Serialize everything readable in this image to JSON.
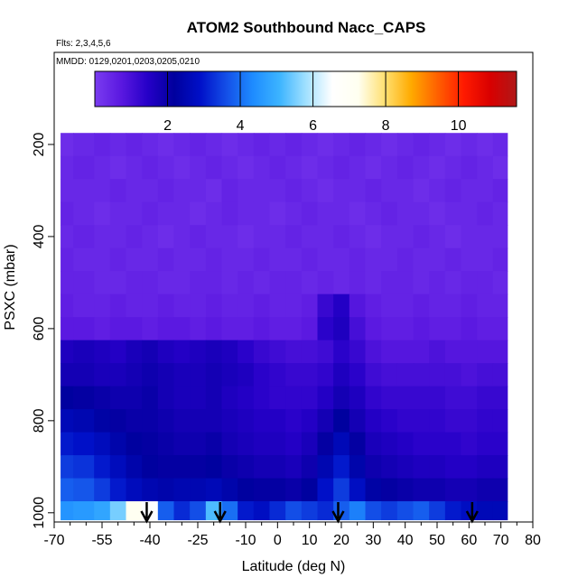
{
  "chart_data": {
    "type": "heatmap",
    "title": "ATOM2 Southbound Nacc_CAPS",
    "flights_note": "Flts: 2,3,4,5,6",
    "dates_note": "MMDD: 0129,0201,0203,0205,0210",
    "xlabel": "Latitude (deg N)",
    "ylabel": "PSXC (mbar)",
    "xlim": [
      -70,
      80
    ],
    "ylim": [
      1020,
      0
    ],
    "x_ticks": [
      -70,
      -55,
      -40,
      -25,
      -10,
      0,
      10,
      20,
      30,
      40,
      50,
      60,
      70,
      80
    ],
    "x_tick_labels": [
      "-70",
      "-55",
      "-40",
      "-25",
      "-10",
      "0",
      "10",
      "20",
      "30",
      "40",
      "50",
      "60",
      "70",
      "80"
    ],
    "x_minor_ticks": [
      -65,
      -60,
      -50,
      -45,
      -35,
      -30,
      -20,
      -15,
      -5,
      5,
      15,
      25,
      35,
      45,
      55,
      65,
      75
    ],
    "y_ticks": [
      200,
      400,
      600,
      800,
      1000
    ],
    "y_tick_labels": [
      "200",
      "400",
      "600",
      "800",
      "1000"
    ],
    "colorbar": {
      "min": 0,
      "max": 11.6,
      "ticks": [
        2,
        4,
        6,
        8,
        10
      ],
      "tick_labels": [
        "2",
        "4",
        "6",
        "8",
        "10"
      ],
      "colors": [
        "#7a3cf0",
        "#5a18e0",
        "#2600c8",
        "#00009e",
        "#0010c8",
        "#1450e8",
        "#1e8cff",
        "#3cb4ff",
        "#a0e0ff",
        "#ffffff",
        "#fffff0",
        "#ffe070",
        "#ffaa00",
        "#ff6000",
        "#ff1a00",
        "#d80000",
        "#b01818"
      ]
    },
    "pressure_levels": [
      200,
      250,
      300,
      350,
      400,
      450,
      500,
      550,
      600,
      650,
      700,
      750,
      800,
      850,
      900,
      950,
      1000
    ],
    "latitudes": [
      -68,
      -60,
      -55,
      -50,
      -45,
      -40,
      -35,
      -30,
      -25,
      -20,
      -15,
      -10,
      -5,
      0,
      5,
      10,
      15,
      20,
      25,
      30,
      35,
      40,
      45,
      50,
      55,
      60,
      65,
      70
    ],
    "values": [
      [
        0.3,
        0.4,
        0.5,
        0.4,
        0.5,
        0.4,
        0.3,
        0.4,
        0.5,
        0.4,
        0.3,
        0.4,
        0.5,
        0.4,
        0.5,
        0.4,
        0.3,
        0.4,
        0.5,
        0.4,
        0.3,
        0.4,
        0.5,
        0.4,
        0.3,
        0.4,
        0.3,
        0.4
      ],
      [
        0.4,
        0.5,
        0.4,
        0.3,
        0.4,
        0.5,
        0.4,
        0.3,
        0.4,
        0.5,
        0.4,
        0.3,
        0.4,
        0.5,
        0.4,
        0.3,
        0.4,
        0.5,
        0.4,
        0.3,
        0.4,
        0.5,
        0.4,
        0.3,
        0.4,
        0.5,
        0.4,
        0.3
      ],
      [
        0.4,
        0.4,
        0.4,
        0.5,
        0.4,
        0.4,
        0.5,
        0.4,
        0.4,
        0.3,
        0.5,
        0.4,
        0.4,
        0.4,
        0.5,
        0.4,
        0.3,
        0.4,
        0.4,
        0.5,
        0.4,
        0.4,
        0.3,
        0.4,
        0.5,
        0.4,
        0.4,
        0.5
      ],
      [
        0.5,
        0.4,
        0.3,
        0.4,
        0.4,
        0.5,
        0.4,
        0.4,
        0.3,
        0.4,
        0.5,
        0.4,
        0.4,
        0.3,
        0.4,
        0.5,
        0.4,
        0.4,
        0.3,
        0.4,
        0.5,
        0.4,
        0.4,
        0.3,
        0.4,
        0.4,
        0.5,
        0.4
      ],
      [
        0.4,
        0.5,
        0.4,
        0.4,
        0.5,
        0.4,
        0.3,
        0.4,
        0.5,
        0.4,
        0.4,
        0.3,
        0.4,
        0.4,
        0.5,
        0.4,
        0.4,
        0.5,
        0.4,
        0.3,
        0.4,
        0.4,
        0.5,
        0.4,
        0.3,
        0.4,
        0.4,
        0.4
      ],
      [
        0.5,
        0.4,
        0.4,
        0.5,
        0.4,
        0.4,
        0.5,
        0.4,
        0.4,
        0.5,
        0.4,
        0.4,
        0.5,
        0.4,
        0.4,
        0.5,
        0.4,
        0.4,
        0.5,
        0.4,
        0.4,
        0.5,
        0.4,
        0.4,
        0.5,
        0.4,
        0.4,
        0.5
      ],
      [
        0.5,
        0.5,
        0.4,
        0.4,
        0.5,
        0.5,
        0.4,
        0.4,
        0.5,
        0.5,
        0.4,
        0.5,
        0.4,
        0.5,
        0.5,
        0.4,
        0.5,
        0.4,
        0.5,
        0.4,
        0.5,
        0.5,
        0.4,
        0.5,
        0.4,
        0.5,
        0.5,
        0.4
      ],
      [
        0.6,
        0.5,
        0.5,
        0.6,
        0.5,
        0.5,
        0.6,
        0.5,
        0.5,
        0.6,
        0.5,
        0.5,
        0.6,
        0.5,
        0.5,
        0.6,
        1.2,
        1.5,
        0.8,
        0.6,
        0.5,
        0.5,
        0.6,
        0.5,
        0.5,
        0.6,
        0.5,
        0.5
      ],
      [
        0.7,
        0.7,
        0.6,
        0.7,
        0.7,
        0.6,
        0.7,
        0.7,
        0.6,
        0.7,
        0.6,
        0.6,
        0.7,
        0.6,
        0.6,
        0.7,
        1.4,
        1.6,
        1.0,
        0.7,
        0.6,
        0.6,
        0.7,
        0.6,
        0.6,
        0.7,
        0.6,
        0.6
      ],
      [
        1.6,
        1.7,
        1.6,
        1.5,
        1.7,
        1.8,
        1.6,
        1.5,
        1.6,
        1.7,
        1.6,
        1.4,
        1.2,
        1.1,
        1.0,
        1.0,
        1.1,
        1.4,
        1.2,
        0.9,
        0.8,
        0.8,
        0.8,
        0.9,
        0.8,
        0.8,
        0.8,
        0.8
      ],
      [
        1.8,
        1.8,
        1.7,
        1.7,
        1.8,
        1.9,
        1.8,
        1.7,
        1.7,
        1.8,
        1.7,
        1.6,
        1.4,
        1.3,
        1.2,
        1.2,
        1.3,
        1.6,
        1.4,
        1.1,
        1.0,
        1.0,
        1.0,
        1.0,
        1.0,
        0.9,
        1.0,
        1.0
      ],
      [
        2.2,
        2.1,
        2.0,
        1.9,
        1.9,
        2.0,
        1.8,
        1.7,
        1.7,
        1.8,
        1.6,
        1.5,
        1.4,
        1.3,
        1.3,
        1.3,
        1.5,
        1.8,
        1.6,
        1.3,
        1.2,
        1.2,
        1.2,
        1.2,
        1.1,
        1.1,
        1.2,
        1.2
      ],
      [
        2.6,
        2.5,
        2.3,
        2.1,
        2.0,
        2.0,
        1.9,
        1.8,
        1.8,
        1.8,
        1.7,
        1.6,
        1.5,
        1.5,
        1.4,
        1.5,
        1.8,
        2.2,
        1.8,
        1.5,
        1.4,
        1.3,
        1.3,
        1.3,
        1.2,
        1.2,
        1.3,
        1.3
      ],
      [
        3.0,
        2.9,
        2.7,
        2.4,
        2.2,
        2.1,
        2.0,
        1.9,
        1.9,
        2.0,
        1.8,
        1.7,
        1.6,
        1.6,
        1.5,
        1.7,
        2.1,
        2.6,
        2.1,
        1.7,
        1.6,
        1.5,
        1.4,
        1.4,
        1.4,
        1.3,
        1.4,
        1.4
      ],
      [
        3.4,
        3.3,
        3.0,
        2.7,
        2.4,
        2.2,
        2.1,
        2.1,
        2.1,
        2.2,
        2.0,
        1.9,
        1.8,
        1.8,
        1.7,
        1.9,
        2.5,
        3.0,
        2.4,
        1.9,
        1.8,
        1.7,
        1.6,
        1.6,
        1.5,
        1.5,
        1.6,
        1.6
      ],
      [
        3.8,
        3.7,
        3.4,
        3.0,
        2.7,
        2.5,
        2.4,
        2.5,
        2.5,
        2.6,
        2.4,
        2.2,
        2.1,
        2.1,
        2.0,
        2.2,
        2.9,
        3.4,
        2.8,
        2.3,
        2.1,
        2.0,
        1.9,
        1.9,
        1.8,
        1.8,
        1.9,
        1.9
      ],
      [
        4.5,
        4.6,
        4.8,
        5.5,
        7.2,
        6.5,
        3.8,
        3.2,
        3.6,
        5.2,
        4.0,
        3.0,
        2.8,
        3.2,
        3.6,
        3.4,
        3.2,
        3.8,
        4.2,
        3.6,
        3.4,
        3.6,
        3.8,
        3.4,
        3.0,
        2.8,
        2.6,
        2.6
      ]
    ],
    "arrow_latitudes": [
      -41,
      -18,
      19,
      61
    ]
  }
}
